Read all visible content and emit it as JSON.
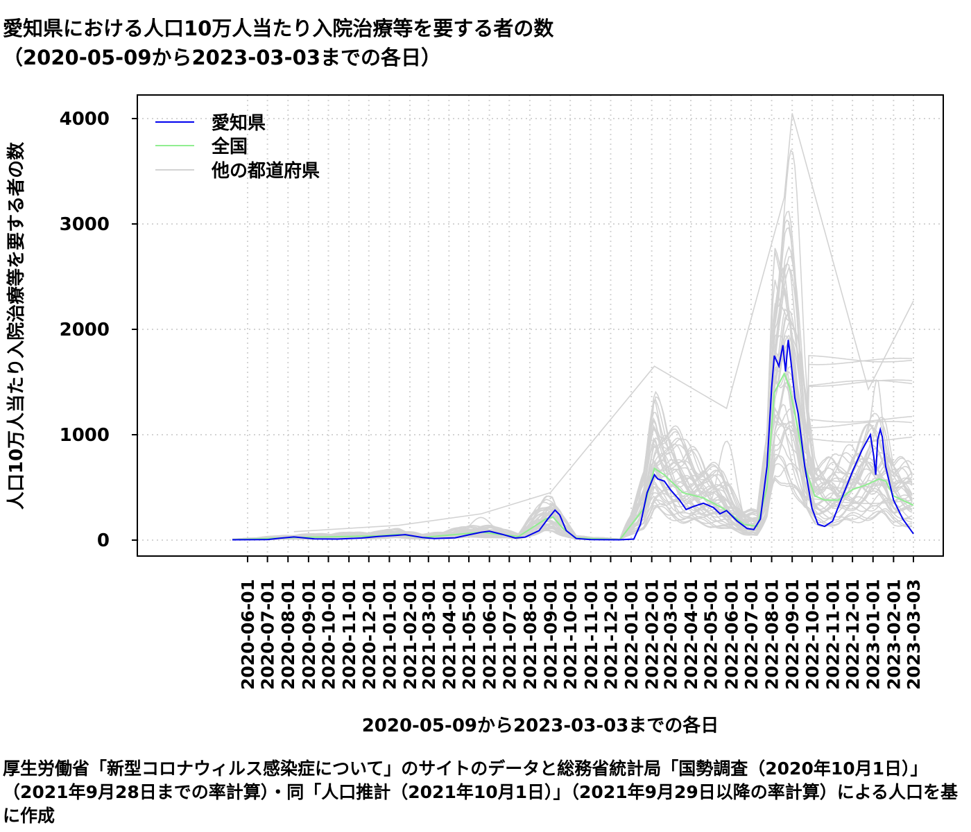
{
  "title": {
    "line1": "愛知県における人口10万人当たり入院治療等を要する者の数",
    "line2": "（2020-05-09から2023-03-03までの各日）"
  },
  "caption": "厚生労働省「新型コロナウィルス感染症について」のサイトのデータと総務省統計局「国勢調査（2020年10月1日）」（2021年9月28日までの率計算）・同「人口推計（2021年10月1日）」（2021年9月29日以降の率計算）による人口を基に作成",
  "chart_data": {
    "type": "line",
    "title": "愛知県における人口10万人当たり入院治療等を要する者の数（2020-05-09から2023-03-03までの各日）",
    "xlabel": "2020-05-09から2023-03-03までの各日",
    "ylabel": "人口10万人当たり入院治療等を要する者の数",
    "xlim": [
      "2020-05-09",
      "2023-03-03"
    ],
    "ylim": [
      0,
      4000
    ],
    "yticks": [
      0,
      1000,
      2000,
      3000,
      4000
    ],
    "xticks": [
      "2020-06-01",
      "2020-07-01",
      "2020-08-01",
      "2020-09-01",
      "2020-10-01",
      "2020-11-01",
      "2020-12-01",
      "2021-01-01",
      "2021-02-01",
      "2021-03-01",
      "2021-04-01",
      "2021-05-01",
      "2021-06-01",
      "2021-07-01",
      "2021-08-01",
      "2021-09-01",
      "2021-10-01",
      "2021-11-01",
      "2021-12-01",
      "2022-01-01",
      "2022-02-01",
      "2022-03-01",
      "2022-04-01",
      "2022-05-01",
      "2022-06-01",
      "2022-07-01",
      "2022-08-01",
      "2022-09-01",
      "2022-10-01",
      "2022-11-01",
      "2022-12-01",
      "2023-01-01",
      "2023-02-01",
      "2023-03-03"
    ],
    "grid": true,
    "legend": {
      "position": "top-left",
      "entries": [
        "愛知県",
        "全国",
        "他の都道府県"
      ]
    },
    "colors": {
      "aichi": "#0000ee",
      "national": "#90ee90",
      "other": "#d3d3d3"
    },
    "series": [
      {
        "name": "愛知県",
        "color": "#0000ee",
        "points": [
          [
            "2020-05-09",
            3
          ],
          [
            "2020-07-01",
            5
          ],
          [
            "2020-07-20",
            18
          ],
          [
            "2020-08-10",
            30
          ],
          [
            "2020-09-10",
            12
          ],
          [
            "2020-10-15",
            10
          ],
          [
            "2020-11-20",
            20
          ],
          [
            "2020-12-15",
            35
          ],
          [
            "2021-01-10",
            45
          ],
          [
            "2021-01-25",
            52
          ],
          [
            "2021-02-20",
            25
          ],
          [
            "2021-03-10",
            15
          ],
          [
            "2021-04-10",
            22
          ],
          [
            "2021-05-01",
            50
          ],
          [
            "2021-05-20",
            75
          ],
          [
            "2021-06-01",
            85
          ],
          [
            "2021-06-20",
            55
          ],
          [
            "2021-07-10",
            20
          ],
          [
            "2021-07-25",
            28
          ],
          [
            "2021-08-15",
            90
          ],
          [
            "2021-08-28",
            200
          ],
          [
            "2021-09-08",
            285
          ],
          [
            "2021-09-15",
            240
          ],
          [
            "2021-09-25",
            90
          ],
          [
            "2021-10-10",
            15
          ],
          [
            "2021-11-01",
            5
          ],
          [
            "2021-12-15",
            3
          ],
          [
            "2022-01-05",
            10
          ],
          [
            "2022-01-15",
            150
          ],
          [
            "2022-01-25",
            450
          ],
          [
            "2022-02-05",
            620
          ],
          [
            "2022-02-10",
            580
          ],
          [
            "2022-02-20",
            560
          ],
          [
            "2022-03-01",
            480
          ],
          [
            "2022-03-15",
            380
          ],
          [
            "2022-03-25",
            290
          ],
          [
            "2022-04-05",
            320
          ],
          [
            "2022-04-20",
            350
          ],
          [
            "2022-05-05",
            310
          ],
          [
            "2022-05-15",
            250
          ],
          [
            "2022-05-25",
            280
          ],
          [
            "2022-06-10",
            180
          ],
          [
            "2022-06-25",
            110
          ],
          [
            "2022-07-05",
            100
          ],
          [
            "2022-07-15",
            200
          ],
          [
            "2022-07-25",
            700
          ],
          [
            "2022-08-01",
            1450
          ],
          [
            "2022-08-05",
            1750
          ],
          [
            "2022-08-12",
            1650
          ],
          [
            "2022-08-18",
            1850
          ],
          [
            "2022-08-22",
            1600
          ],
          [
            "2022-08-26",
            1900
          ],
          [
            "2022-08-30",
            1700
          ],
          [
            "2022-09-05",
            1350
          ],
          [
            "2022-09-10",
            1200
          ],
          [
            "2022-09-20",
            700
          ],
          [
            "2022-10-01",
            300
          ],
          [
            "2022-10-10",
            150
          ],
          [
            "2022-10-20",
            130
          ],
          [
            "2022-11-01",
            180
          ],
          [
            "2022-11-15",
            400
          ],
          [
            "2022-12-01",
            650
          ],
          [
            "2022-12-15",
            850
          ],
          [
            "2022-12-28",
            1000
          ],
          [
            "2023-01-02",
            800
          ],
          [
            "2023-01-05",
            620
          ],
          [
            "2023-01-08",
            950
          ],
          [
            "2023-01-12",
            1050
          ],
          [
            "2023-01-15",
            980
          ],
          [
            "2023-01-20",
            700
          ],
          [
            "2023-02-01",
            380
          ],
          [
            "2023-02-15",
            200
          ],
          [
            "2023-03-03",
            60
          ]
        ]
      },
      {
        "name": "全国",
        "color": "#90ee90",
        "points": [
          [
            "2020-05-09",
            4
          ],
          [
            "2020-08-10",
            25
          ],
          [
            "2020-12-15",
            40
          ],
          [
            "2021-01-15",
            55
          ],
          [
            "2021-02-20",
            25
          ],
          [
            "2021-05-20",
            75
          ],
          [
            "2021-06-15",
            55
          ],
          [
            "2021-07-15",
            35
          ],
          [
            "2021-08-25",
            200
          ],
          [
            "2021-09-05",
            220
          ],
          [
            "2021-09-20",
            110
          ],
          [
            "2021-10-10",
            20
          ],
          [
            "2021-12-15",
            5
          ],
          [
            "2022-01-20",
            300
          ],
          [
            "2022-02-05",
            680
          ],
          [
            "2022-02-20",
            620
          ],
          [
            "2022-03-20",
            450
          ],
          [
            "2022-04-20",
            400
          ],
          [
            "2022-05-20",
            300
          ],
          [
            "2022-06-20",
            150
          ],
          [
            "2022-07-10",
            130
          ],
          [
            "2022-07-25",
            500
          ],
          [
            "2022-08-05",
            1400
          ],
          [
            "2022-08-20",
            1580
          ],
          [
            "2022-08-28",
            1450
          ],
          [
            "2022-09-05",
            1200
          ],
          [
            "2022-09-20",
            700
          ],
          [
            "2022-10-05",
            420
          ],
          [
            "2022-10-20",
            380
          ],
          [
            "2022-11-10",
            380
          ],
          [
            "2022-12-01",
            480
          ],
          [
            "2022-12-20",
            520
          ],
          [
            "2023-01-10",
            580
          ],
          [
            "2023-01-20",
            560
          ],
          [
            "2023-02-01",
            420
          ],
          [
            "2023-03-03",
            330
          ]
        ]
      },
      {
        "name": "他の都道府県",
        "color": "#d3d3d3",
        "peak_points": [
          [
            "2020-08-10",
            80
          ],
          [
            "2021-01-15",
            140
          ],
          [
            "2021-05-20",
            250
          ],
          [
            "2021-09-01",
            450
          ],
          [
            "2022-02-05",
            1650
          ],
          [
            "2022-05-25",
            1250
          ],
          [
            "2022-08-20",
            3250
          ],
          [
            "2022-09-01",
            4050
          ],
          [
            "2022-12-25",
            1430
          ],
          [
            "2023-03-03",
            2270
          ]
        ]
      }
    ]
  }
}
